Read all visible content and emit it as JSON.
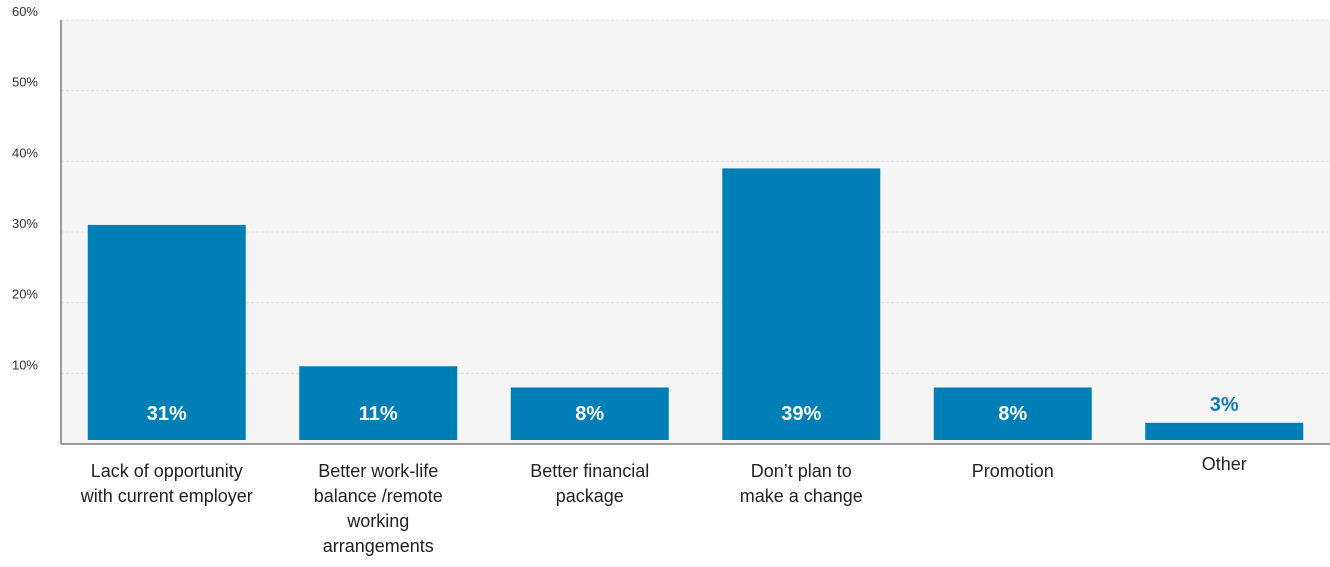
{
  "chart_data": {
    "type": "bar",
    "categories": [
      [
        "Lack of opportunity",
        "with current employer"
      ],
      [
        "Better work-life",
        "balance /remote",
        "working",
        "arrangements"
      ],
      [
        "Better financial",
        "package"
      ],
      [
        "Don’t plan to",
        "make a change"
      ],
      [
        "Promotion"
      ],
      [
        "Other"
      ]
    ],
    "values": [
      31,
      11,
      8,
      39,
      8,
      3
    ],
    "value_labels": [
      "31%",
      "11%",
      "8%",
      "39%",
      "8%",
      "3%"
    ],
    "yticks": [
      10,
      20,
      30,
      40,
      50,
      60
    ],
    "ytick_labels": [
      "10%",
      "20%",
      "30%",
      "40%",
      "50%",
      "60%"
    ],
    "ylim": [
      0,
      60
    ],
    "grid": true,
    "bar_color": "#007fb6",
    "plot_bg": "#f5f5f5",
    "outside_label_color": "#0d7fb8"
  }
}
